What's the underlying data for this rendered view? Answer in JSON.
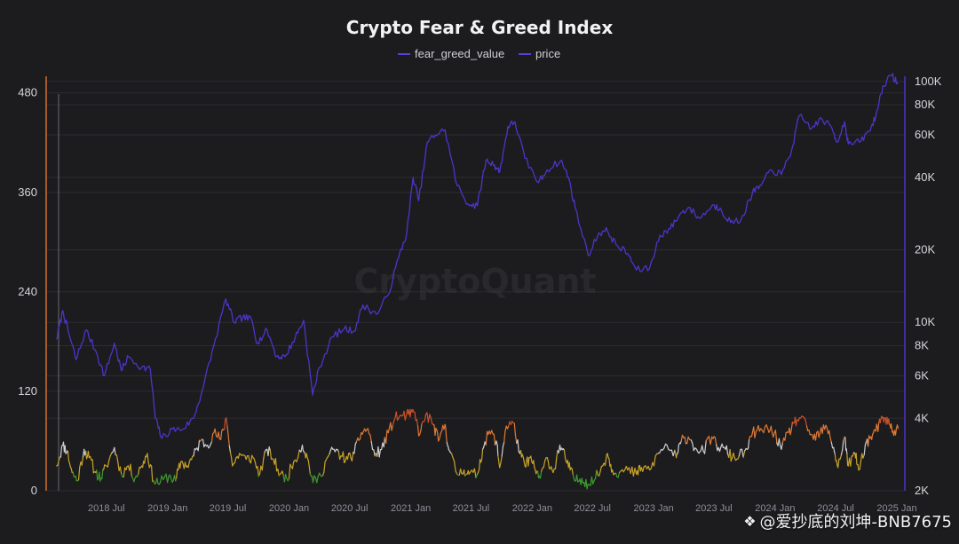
{
  "page": {
    "footer_text": "@爱抄底的刘坤-BNB7675",
    "footer_logo_icon": "binance-diamond-icon"
  },
  "chart_data": {
    "type": "line",
    "title": "Crypto Fear & Greed Index",
    "watermark": "CryptoQuant",
    "legend": {
      "placement": "top-center",
      "items": [
        {
          "name": "fear_greed_value",
          "color": "#5b3fd6"
        },
        {
          "name": "price",
          "color": "#5b3fd6"
        }
      ]
    },
    "colors": {
      "price_line": "#4f33c9",
      "fg_extreme_fear": "#3f9a2f",
      "fg_fear": "#c9a227",
      "fg_neutral": "#cfcfcf",
      "fg_greed": "#e07a33",
      "fg_extreme_greed": "#c9512a",
      "left_axis": "#d0702d",
      "right_axis": "#4f33c9",
      "grid": "#2c2c31"
    },
    "x_axis": {
      "ticks": [
        "2018 Jul",
        "2019 Jan",
        "2019 Jul",
        "2020 Jan",
        "2020 Jul",
        "2021 Jan",
        "2021 Jul",
        "2022 Jan",
        "2022 Jul",
        "2023 Jan",
        "2023 Jul",
        "2024 Jan",
        "2024 Jul",
        "2025 Jan"
      ],
      "range": [
        "2018-02-01",
        "2025-01-10"
      ]
    },
    "y_left": {
      "label": "",
      "range": [
        0,
        500
      ],
      "ticks": [
        "0",
        "120",
        "240",
        "360",
        "480"
      ]
    },
    "y_right": {
      "label": "",
      "scale": "log",
      "range": [
        2000,
        105000
      ],
      "ticks": [
        "2K",
        "4K",
        "6K",
        "8K",
        "10K",
        "20K",
        "40K",
        "60K",
        "80K",
        "100K"
      ]
    },
    "series": [
      {
        "name": "price",
        "axis": "right",
        "points": [
          [
            "2018-02-01",
            8500
          ],
          [
            "2018-02-20",
            11200
          ],
          [
            "2018-03-10",
            9000
          ],
          [
            "2018-04-01",
            7000
          ],
          [
            "2018-05-01",
            9300
          ],
          [
            "2018-06-01",
            7500
          ],
          [
            "2018-06-25",
            6000
          ],
          [
            "2018-07-25",
            8200
          ],
          [
            "2018-08-15",
            6300
          ],
          [
            "2018-09-05",
            7200
          ],
          [
            "2018-10-15",
            6500
          ],
          [
            "2018-11-10",
            6400
          ],
          [
            "2018-11-25",
            4000
          ],
          [
            "2018-12-15",
            3300
          ],
          [
            "2019-01-15",
            3600
          ],
          [
            "2019-02-15",
            3600
          ],
          [
            "2019-03-20",
            4000
          ],
          [
            "2019-04-15",
            5200
          ],
          [
            "2019-05-20",
            8000
          ],
          [
            "2019-06-25",
            12500
          ],
          [
            "2019-07-20",
            10000
          ],
          [
            "2019-08-15",
            10500
          ],
          [
            "2019-09-10",
            10300
          ],
          [
            "2019-09-28",
            8200
          ],
          [
            "2019-10-27",
            9300
          ],
          [
            "2019-11-25",
            7200
          ],
          [
            "2019-12-20",
            7200
          ],
          [
            "2020-01-20",
            8700
          ],
          [
            "2020-02-14",
            10200
          ],
          [
            "2020-03-12",
            5000
          ],
          [
            "2020-04-01",
            6500
          ],
          [
            "2020-05-10",
            8700
          ],
          [
            "2020-06-15",
            9400
          ],
          [
            "2020-07-15",
            9200
          ],
          [
            "2020-08-10",
            11800
          ],
          [
            "2020-09-20",
            10800
          ],
          [
            "2020-10-25",
            13000
          ],
          [
            "2020-11-25",
            18500
          ],
          [
            "2020-12-20",
            23500
          ],
          [
            "2021-01-08",
            40000
          ],
          [
            "2021-01-25",
            32000
          ],
          [
            "2021-02-20",
            56000
          ],
          [
            "2021-03-15",
            60000
          ],
          [
            "2021-04-14",
            63000
          ],
          [
            "2021-05-20",
            37000
          ],
          [
            "2021-06-22",
            31000
          ],
          [
            "2021-07-20",
            30500
          ],
          [
            "2021-08-15",
            47000
          ],
          [
            "2021-09-10",
            45000
          ],
          [
            "2021-09-25",
            42000
          ],
          [
            "2021-10-20",
            65000
          ],
          [
            "2021-11-10",
            68000
          ],
          [
            "2021-12-10",
            48000
          ],
          [
            "2022-01-20",
            38000
          ],
          [
            "2022-02-15",
            43000
          ],
          [
            "2022-03-28",
            47000
          ],
          [
            "2022-04-20",
            40000
          ],
          [
            "2022-05-10",
            30000
          ],
          [
            "2022-06-18",
            19000
          ],
          [
            "2022-07-20",
            23500
          ],
          [
            "2022-08-15",
            24000
          ],
          [
            "2022-09-10",
            21000
          ],
          [
            "2022-10-15",
            19300
          ],
          [
            "2022-11-10",
            16500
          ],
          [
            "2022-12-20",
            16800
          ],
          [
            "2023-01-20",
            23000
          ],
          [
            "2023-02-20",
            24500
          ],
          [
            "2023-03-20",
            28000
          ],
          [
            "2023-04-15",
            30000
          ],
          [
            "2023-05-20",
            27000
          ],
          [
            "2023-06-25",
            30500
          ],
          [
            "2023-07-20",
            29800
          ],
          [
            "2023-08-20",
            26000
          ],
          [
            "2023-09-20",
            26500
          ],
          [
            "2023-10-25",
            34500
          ],
          [
            "2023-11-20",
            37000
          ],
          [
            "2023-12-20",
            43000
          ],
          [
            "2024-01-20",
            41000
          ],
          [
            "2024-02-20",
            52000
          ],
          [
            "2024-03-14",
            72000
          ],
          [
            "2024-04-20",
            64000
          ],
          [
            "2024-05-20",
            70000
          ],
          [
            "2024-06-20",
            64000
          ],
          [
            "2024-07-05",
            56000
          ],
          [
            "2024-07-28",
            68000
          ],
          [
            "2024-08-08",
            55000
          ],
          [
            "2024-09-10",
            56000
          ],
          [
            "2024-10-10",
            62000
          ],
          [
            "2024-10-30",
            72000
          ],
          [
            "2024-11-20",
            96000
          ],
          [
            "2024-12-17",
            106000
          ],
          [
            "2025-01-05",
            98000
          ]
        ]
      },
      {
        "name": "fear_greed_value",
        "axis": "left",
        "points": [
          [
            "2018-02-01",
            30
          ],
          [
            "2018-02-20",
            55
          ],
          [
            "2018-03-05",
            48
          ],
          [
            "2018-03-20",
            22
          ],
          [
            "2018-04-05",
            12
          ],
          [
            "2018-04-25",
            50
          ],
          [
            "2018-05-10",
            40
          ],
          [
            "2018-05-30",
            22
          ],
          [
            "2018-06-15",
            15
          ],
          [
            "2018-07-01",
            30
          ],
          [
            "2018-07-25",
            52
          ],
          [
            "2018-08-15",
            20
          ],
          [
            "2018-09-05",
            30
          ],
          [
            "2018-09-25",
            15
          ],
          [
            "2018-10-15",
            30
          ],
          [
            "2018-11-01",
            45
          ],
          [
            "2018-11-20",
            12
          ],
          [
            "2018-12-10",
            10
          ],
          [
            "2019-01-05",
            18
          ],
          [
            "2019-01-25",
            12
          ],
          [
            "2019-02-10",
            35
          ],
          [
            "2019-03-01",
            30
          ],
          [
            "2019-03-20",
            42
          ],
          [
            "2019-04-10",
            60
          ],
          [
            "2019-05-01",
            55
          ],
          [
            "2019-05-20",
            70
          ],
          [
            "2019-06-10",
            62
          ],
          [
            "2019-06-26",
            88
          ],
          [
            "2019-07-15",
            30
          ],
          [
            "2019-08-05",
            45
          ],
          [
            "2019-08-25",
            38
          ],
          [
            "2019-09-15",
            40
          ],
          [
            "2019-10-05",
            20
          ],
          [
            "2019-10-27",
            50
          ],
          [
            "2019-11-15",
            38
          ],
          [
            "2019-12-05",
            20
          ],
          [
            "2019-12-25",
            15
          ],
          [
            "2020-01-15",
            35
          ],
          [
            "2020-02-10",
            55
          ],
          [
            "2020-02-25",
            40
          ],
          [
            "2020-03-13",
            10
          ],
          [
            "2020-04-05",
            18
          ],
          [
            "2020-04-25",
            40
          ],
          [
            "2020-05-15",
            50
          ],
          [
            "2020-06-05",
            42
          ],
          [
            "2020-06-25",
            38
          ],
          [
            "2020-07-15",
            45
          ],
          [
            "2020-08-05",
            70
          ],
          [
            "2020-08-25",
            75
          ],
          [
            "2020-09-15",
            42
          ],
          [
            "2020-10-05",
            50
          ],
          [
            "2020-10-25",
            70
          ],
          [
            "2020-11-15",
            88
          ],
          [
            "2020-12-05",
            90
          ],
          [
            "2020-12-25",
            92
          ],
          [
            "2021-01-10",
            95
          ],
          [
            "2021-01-28",
            68
          ],
          [
            "2021-02-15",
            92
          ],
          [
            "2021-03-10",
            80
          ],
          [
            "2021-03-25",
            60
          ],
          [
            "2021-04-14",
            80
          ],
          [
            "2021-04-25",
            50
          ],
          [
            "2021-05-20",
            20
          ],
          [
            "2021-06-10",
            25
          ],
          [
            "2021-06-25",
            20
          ],
          [
            "2021-07-20",
            20
          ],
          [
            "2021-08-05",
            50
          ],
          [
            "2021-08-25",
            72
          ],
          [
            "2021-09-15",
            60
          ],
          [
            "2021-09-25",
            28
          ],
          [
            "2021-10-15",
            78
          ],
          [
            "2021-11-05",
            82
          ],
          [
            "2021-11-25",
            45
          ],
          [
            "2021-12-10",
            30
          ],
          [
            "2021-12-25",
            40
          ],
          [
            "2022-01-10",
            25
          ],
          [
            "2022-01-25",
            15
          ],
          [
            "2022-02-15",
            40
          ],
          [
            "2022-03-05",
            22
          ],
          [
            "2022-03-25",
            55
          ],
          [
            "2022-04-10",
            40
          ],
          [
            "2022-04-25",
            25
          ],
          [
            "2022-05-12",
            12
          ],
          [
            "2022-05-30",
            15
          ],
          [
            "2022-06-18",
            8
          ],
          [
            "2022-07-10",
            15
          ],
          [
            "2022-08-01",
            30
          ],
          [
            "2022-08-15",
            45
          ],
          [
            "2022-08-30",
            25
          ],
          [
            "2022-09-20",
            22
          ],
          [
            "2022-10-15",
            25
          ],
          [
            "2022-11-10",
            20
          ],
          [
            "2022-11-25",
            28
          ],
          [
            "2022-12-20",
            25
          ],
          [
            "2023-01-15",
            45
          ],
          [
            "2023-02-10",
            55
          ],
          [
            "2023-03-10",
            40
          ],
          [
            "2023-03-25",
            60
          ],
          [
            "2023-04-15",
            65
          ],
          [
            "2023-05-10",
            50
          ],
          [
            "2023-05-30",
            48
          ],
          [
            "2023-06-25",
            65
          ],
          [
            "2023-07-15",
            52
          ],
          [
            "2023-08-05",
            50
          ],
          [
            "2023-08-25",
            40
          ],
          [
            "2023-09-15",
            42
          ],
          [
            "2023-10-10",
            50
          ],
          [
            "2023-10-25",
            70
          ],
          [
            "2023-11-15",
            72
          ],
          [
            "2023-12-10",
            75
          ],
          [
            "2023-12-30",
            70
          ],
          [
            "2024-01-20",
            50
          ],
          [
            "2024-02-10",
            70
          ],
          [
            "2024-02-28",
            82
          ],
          [
            "2024-03-14",
            88
          ],
          [
            "2024-04-05",
            78
          ],
          [
            "2024-04-25",
            62
          ],
          [
            "2024-05-15",
            70
          ],
          [
            "2024-06-05",
            76
          ],
          [
            "2024-06-25",
            52
          ],
          [
            "2024-07-08",
            28
          ],
          [
            "2024-07-28",
            65
          ],
          [
            "2024-08-08",
            30
          ],
          [
            "2024-08-28",
            45
          ],
          [
            "2024-09-08",
            25
          ],
          [
            "2024-09-28",
            55
          ],
          [
            "2024-10-15",
            65
          ],
          [
            "2024-10-30",
            72
          ],
          [
            "2024-11-12",
            82
          ],
          [
            "2024-11-25",
            88
          ],
          [
            "2024-12-10",
            80
          ],
          [
            "2024-12-20",
            72
          ],
          [
            "2025-01-05",
            75
          ]
        ]
      }
    ]
  }
}
